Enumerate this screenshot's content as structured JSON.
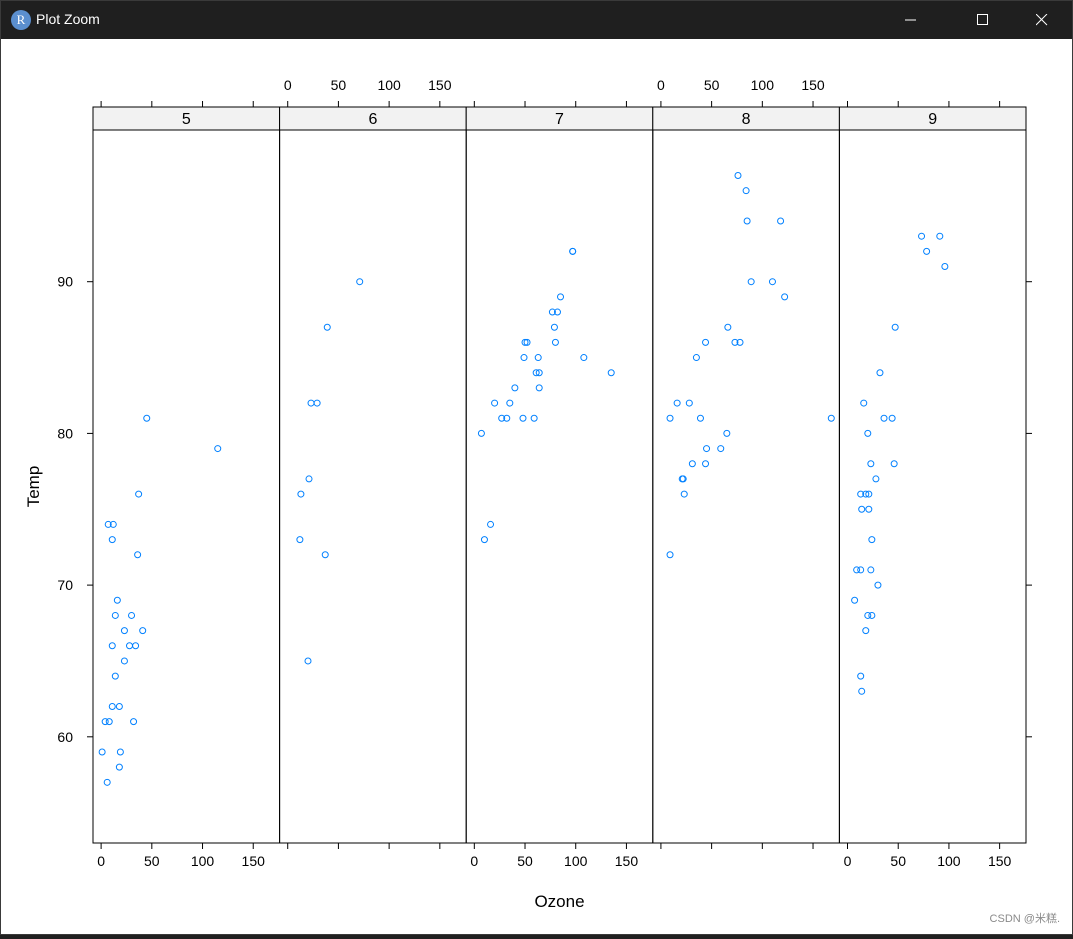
{
  "window": {
    "title": "Plot Zoom",
    "icon": "R-logo-icon"
  },
  "watermark": "CSDN @米糕.",
  "colors": {
    "points": "#0080ff",
    "strip_bg": "#f2f2f2",
    "frame": "#000000"
  },
  "chart_data": {
    "type": "scatter",
    "layout": "lattice xyplot, 5 panels conditioned on Month",
    "xlabel": "Ozone",
    "ylabel": "Temp",
    "xlim": [
      -8,
      176
    ],
    "ylim": [
      53,
      100
    ],
    "x_ticks": [
      0,
      50,
      100,
      150
    ],
    "y_ticks": [
      60,
      70,
      80,
      90
    ],
    "panels": [
      {
        "strip": "5",
        "points": [
          [
            41,
            67
          ],
          [
            36,
            72
          ],
          [
            12,
            74
          ],
          [
            18,
            62
          ],
          [
            28,
            66
          ],
          [
            23,
            65
          ],
          [
            19,
            59
          ],
          [
            8,
            61
          ],
          [
            7,
            74
          ],
          [
            16,
            69
          ],
          [
            11,
            66
          ],
          [
            14,
            68
          ],
          [
            18,
            58
          ],
          [
            14,
            64
          ],
          [
            34,
            66
          ],
          [
            6,
            57
          ],
          [
            30,
            68
          ],
          [
            11,
            62
          ],
          [
            1,
            59
          ],
          [
            11,
            73
          ],
          [
            4,
            61
          ],
          [
            32,
            61
          ],
          [
            23,
            67
          ],
          [
            45,
            81
          ],
          [
            115,
            79
          ],
          [
            37,
            76
          ]
        ]
      },
      {
        "strip": "6",
        "points": [
          [
            29,
            82
          ],
          [
            71,
            90
          ],
          [
            39,
            87
          ],
          [
            23,
            82
          ],
          [
            21,
            77
          ],
          [
            37,
            72
          ],
          [
            20,
            65
          ],
          [
            12,
            73
          ],
          [
            13,
            76
          ]
        ]
      },
      {
        "strip": "7",
        "points": [
          [
            135,
            84
          ],
          [
            49,
            85
          ],
          [
            32,
            81
          ],
          [
            64,
            84
          ],
          [
            40,
            83
          ],
          [
            77,
            88
          ],
          [
            97,
            92
          ],
          [
            97,
            92
          ],
          [
            85,
            89
          ],
          [
            10,
            73
          ],
          [
            27,
            81
          ],
          [
            7,
            80
          ],
          [
            48,
            81
          ],
          [
            35,
            82
          ],
          [
            61,
            84
          ],
          [
            79,
            87
          ],
          [
            63,
            85
          ],
          [
            16,
            74
          ],
          [
            80,
            86
          ],
          [
            108,
            85
          ],
          [
            20,
            82
          ],
          [
            52,
            86
          ],
          [
            82,
            88
          ],
          [
            50,
            86
          ],
          [
            64,
            83
          ],
          [
            59,
            81
          ]
        ]
      },
      {
        "strip": "8",
        "points": [
          [
            39,
            81
          ],
          [
            9,
            81
          ],
          [
            16,
            82
          ],
          [
            78,
            86
          ],
          [
            35,
            85
          ],
          [
            66,
            87
          ],
          [
            122,
            89
          ],
          [
            89,
            90
          ],
          [
            110,
            90
          ],
          [
            44,
            86
          ],
          [
            28,
            82
          ],
          [
            65,
            80
          ],
          [
            22,
            77
          ],
          [
            59,
            79
          ],
          [
            23,
            76
          ],
          [
            31,
            78
          ],
          [
            44,
            78
          ],
          [
            21,
            77
          ],
          [
            9,
            72
          ],
          [
            45,
            79
          ],
          [
            168,
            81
          ],
          [
            73,
            86
          ],
          [
            76,
            97
          ],
          [
            118,
            94
          ],
          [
            84,
            96
          ],
          [
            85,
            94
          ]
        ]
      },
      {
        "strip": "9",
        "points": [
          [
            96,
            91
          ],
          [
            78,
            92
          ],
          [
            73,
            93
          ],
          [
            91,
            93
          ],
          [
            47,
            87
          ],
          [
            32,
            84
          ],
          [
            20,
            80
          ],
          [
            23,
            78
          ],
          [
            21,
            75
          ],
          [
            24,
            73
          ],
          [
            44,
            81
          ],
          [
            21,
            76
          ],
          [
            28,
            77
          ],
          [
            9,
            71
          ],
          [
            13,
            71
          ],
          [
            46,
            78
          ],
          [
            18,
            67
          ],
          [
            13,
            76
          ],
          [
            24,
            68
          ],
          [
            16,
            82
          ],
          [
            13,
            64
          ],
          [
            23,
            71
          ],
          [
            36,
            81
          ],
          [
            7,
            69
          ],
          [
            14,
            63
          ],
          [
            30,
            70
          ],
          [
            14,
            75
          ],
          [
            18,
            76
          ],
          [
            20,
            68
          ]
        ]
      }
    ]
  }
}
